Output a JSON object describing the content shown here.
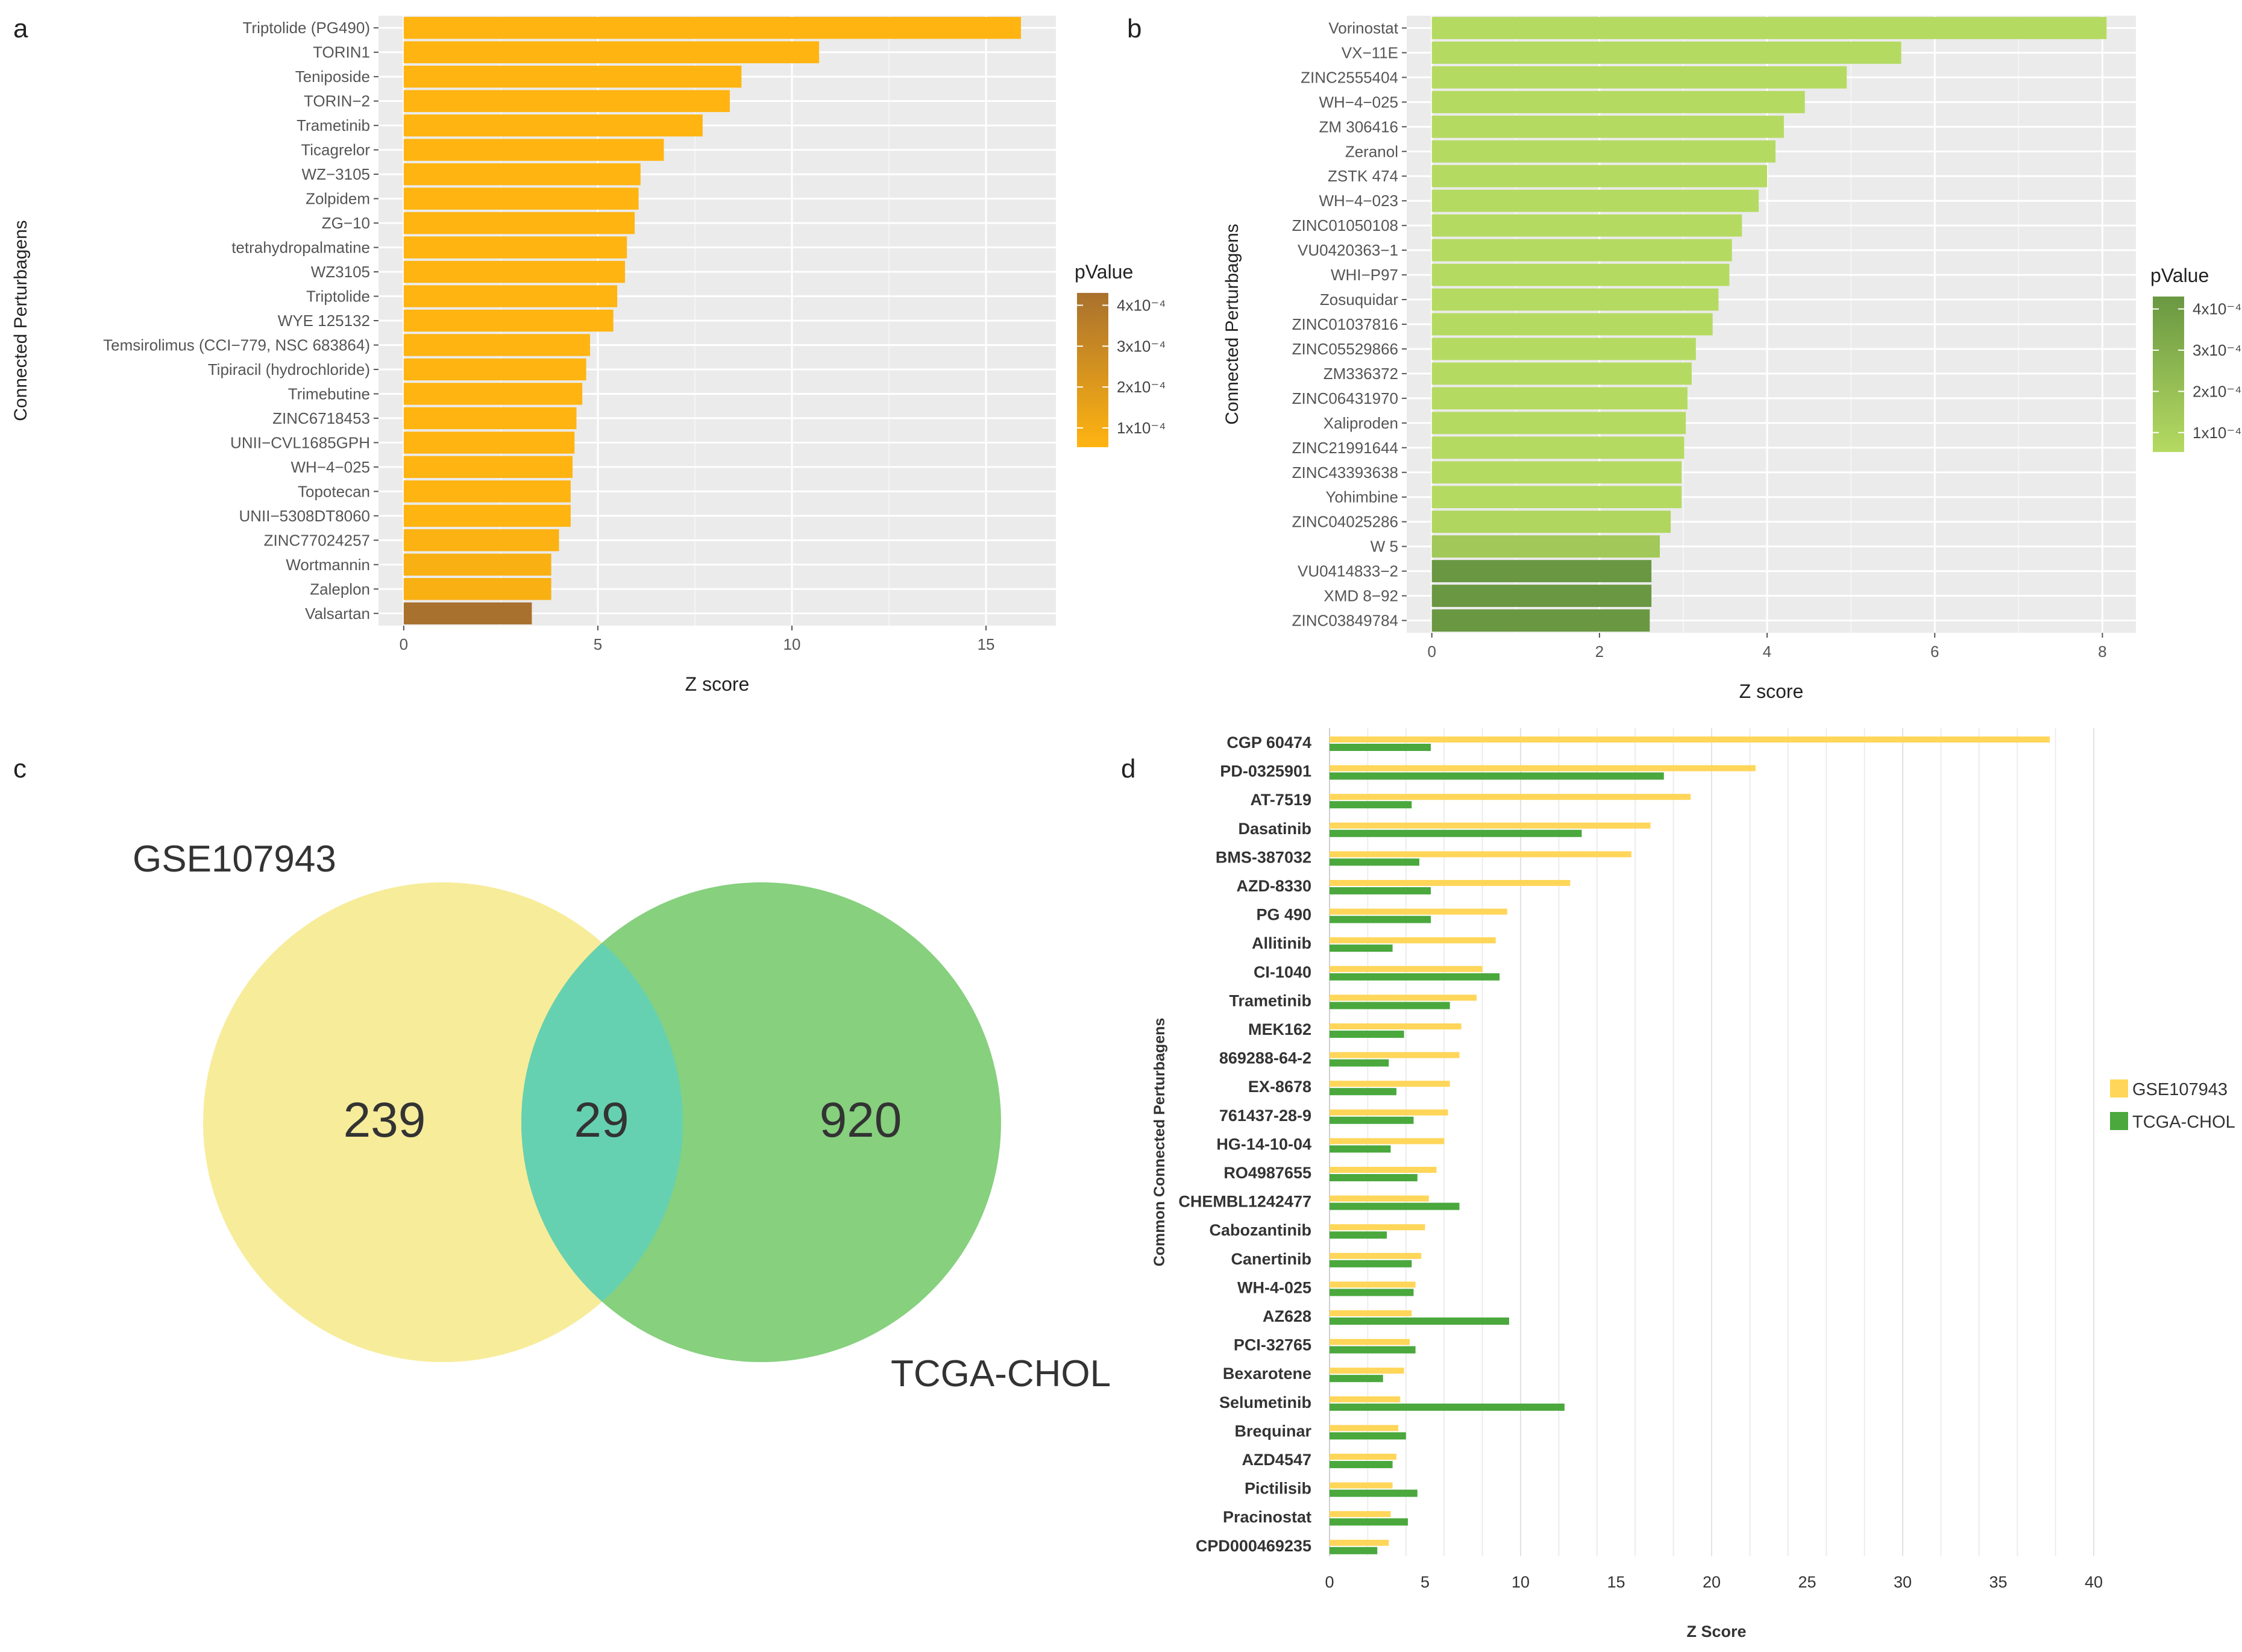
{
  "colors": {
    "panel_bg": "#ebebeb",
    "grid": "#ffffff",
    "orange": "#ffb411",
    "orange_dark": "#a9712e",
    "green_light": "#b5da62",
    "green_dark": "#6a9842",
    "venn_left": "#f7ec9a",
    "venn_right": "#86d07e",
    "venn_overlap": "#66d1b0",
    "gse": "#ffd659",
    "tcga": "#4aa83d"
  },
  "panel_letters": {
    "a": "a",
    "b": "b",
    "c": "c",
    "d": "d"
  },
  "chart_data": [
    {
      "panel": "a",
      "type": "bar",
      "orientation": "horizontal",
      "xlabel": "Z score",
      "ylabel": "Connected Perturbagens",
      "xlim": [
        0,
        16.8
      ],
      "xticks": [
        "0",
        "5",
        "10",
        "15"
      ],
      "legend_title": "pValue",
      "legend_labels": [
        "4x10⁻⁴",
        "3x10⁻⁴",
        "2x10⁻⁴",
        "1x10⁻⁴"
      ],
      "categories": [
        "Triptolide (PG490)",
        "TORIN1",
        "Teniposide",
        "TORIN−2",
        "Trametinib",
        "Ticagrelor",
        "WZ−3105",
        "Zolpidem",
        "ZG−10",
        "tetrahydropalmatine",
        "WZ3105",
        "Triptolide",
        "WYE 125132",
        "Temsirolimus (CCI−779, NSC 683864)",
        "Tipiracil (hydrochloride)",
        "Trimebutine",
        "ZINC6718453",
        "UNII−CVL1685GPH",
        "WH−4−025",
        "Topotecan",
        "UNII−5308DT8060",
        "ZINC77024257",
        "Wortmannin",
        "Zaleplon",
        "Valsartan"
      ],
      "values": [
        15.9,
        10.7,
        8.7,
        8.4,
        7.7,
        6.7,
        6.1,
        6.05,
        5.95,
        5.75,
        5.7,
        5.5,
        5.4,
        4.8,
        4.7,
        4.6,
        4.45,
        4.4,
        4.35,
        4.3,
        4.3,
        4.0,
        3.8,
        3.8,
        3.3
      ],
      "pvalues": [
        0.0001,
        0.0001,
        0.0001,
        0.0001,
        0.0001,
        0.0001,
        0.0001,
        0.0001,
        0.0001,
        0.0001,
        0.0001,
        0.0001,
        0.0001,
        0.0001,
        0.0001,
        0.0001,
        0.0001,
        0.0001,
        0.0001,
        0.0001,
        0.0001,
        0.00011,
        0.00012,
        0.00012,
        0.00045
      ]
    },
    {
      "panel": "b",
      "type": "bar",
      "orientation": "horizontal",
      "xlabel": "Z score",
      "ylabel": "Connected Perturbagens",
      "xlim": [
        0,
        8.4
      ],
      "xticks": [
        "0",
        "2",
        "4",
        "6",
        "8"
      ],
      "legend_title": "pValue",
      "legend_labels": [
        "4x10⁻⁴",
        "3x10⁻⁴",
        "2x10⁻⁴",
        "1x10⁻⁴"
      ],
      "categories": [
        "Vorinostat",
        "VX−11E",
        "ZINC2555404",
        "WH−4−025",
        "ZM 306416",
        "Zeranol",
        "ZSTK 474",
        "WH−4−023",
        "ZINC01050108",
        "VU0420363−1",
        "WHI−P97",
        "Zosuquidar",
        "ZINC01037816",
        "ZINC05529866",
        "ZM336372",
        "ZINC06431970",
        "Xaliproden",
        "ZINC21991644",
        "ZINC43393638",
        "Yohimbine",
        "ZINC04025286",
        "W 5",
        "VU0414833−2",
        "XMD 8−92",
        "ZINC03849784"
      ],
      "values": [
        8.05,
        5.6,
        4.95,
        4.45,
        4.2,
        4.1,
        4.0,
        3.9,
        3.7,
        3.58,
        3.55,
        3.42,
        3.35,
        3.15,
        3.1,
        3.05,
        3.03,
        3.01,
        2.98,
        2.98,
        2.85,
        2.72,
        2.62,
        2.62,
        2.6
      ],
      "pvalues": [
        0.0001,
        0.0001,
        0.0001,
        0.0001,
        0.0001,
        0.0001,
        0.0001,
        0.0001,
        0.0001,
        0.0001,
        0.0001,
        0.0001,
        0.0001,
        0.0001,
        0.0001,
        0.0001,
        0.0001,
        0.0001,
        0.0001,
        0.0001,
        0.00012,
        0.00018,
        0.00042,
        0.00042,
        0.00042
      ]
    },
    {
      "panel": "c",
      "type": "venn",
      "sets": [
        "GSE107943",
        "TCGA-CHOL"
      ],
      "left_only": "239",
      "overlap": "29",
      "right_only": "920"
    },
    {
      "panel": "d",
      "type": "bar",
      "orientation": "horizontal",
      "xlabel": "Z Score",
      "ylabel": "Common Connected Perturbagens",
      "xlim": [
        0,
        40
      ],
      "xticks": [
        "0",
        "5",
        "10",
        "15",
        "20",
        "25",
        "30",
        "35",
        "40"
      ],
      "categories": [
        "CGP 60474",
        "PD-0325901",
        "AT-7519",
        "Dasatinib",
        "BMS-387032",
        "AZD-8330",
        "PG 490",
        "Allitinib",
        "CI-1040",
        "Trametinib",
        "MEK162",
        "869288-64-2",
        "EX-8678",
        "761437-28-9",
        "HG-14-10-04",
        "RO4987655",
        "CHEMBL1242477",
        "Cabozantinib",
        "Canertinib",
        "WH-4-025",
        "AZ628",
        "PCI-32765",
        "Bexarotene",
        "Selumetinib",
        "Brequinar",
        "AZD4547",
        "Pictilisib",
        "Pracinostat",
        "CPD000469235"
      ],
      "series": [
        {
          "name": "GSE107943",
          "values": [
            37.7,
            22.3,
            18.9,
            16.8,
            15.8,
            12.6,
            9.3,
            8.7,
            8.0,
            7.7,
            6.9,
            6.8,
            6.3,
            6.2,
            6.0,
            5.6,
            5.2,
            5.0,
            4.8,
            4.5,
            4.3,
            4.2,
            3.9,
            3.7,
            3.6,
            3.5,
            3.3,
            3.2,
            3.1
          ]
        },
        {
          "name": "TCGA-CHOL",
          "values": [
            5.3,
            17.5,
            4.3,
            13.2,
            4.7,
            5.3,
            5.3,
            3.3,
            8.9,
            6.3,
            3.9,
            3.1,
            3.5,
            4.4,
            3.2,
            4.6,
            6.8,
            3.0,
            4.3,
            4.4,
            9.4,
            4.5,
            2.8,
            12.3,
            4.0,
            3.3,
            4.6,
            4.1,
            2.5
          ]
        }
      ]
    }
  ]
}
